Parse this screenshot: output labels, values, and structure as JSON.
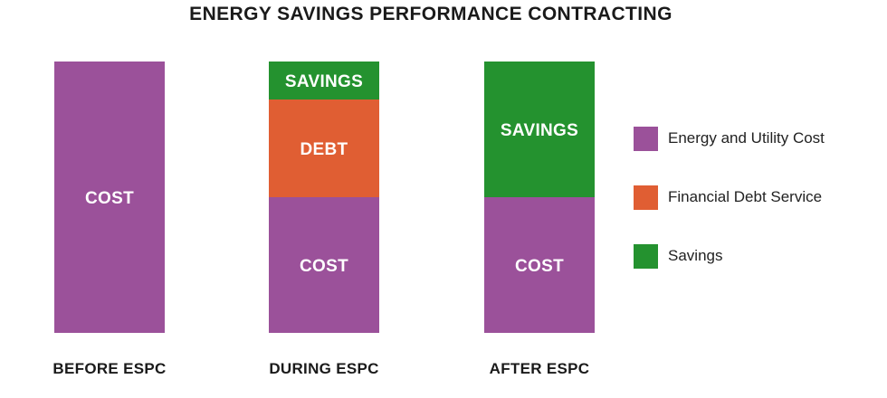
{
  "chart_data": {
    "type": "bar",
    "stacked": true,
    "title": "ENERGY SAVINGS PERFORMANCE CONTRACTING",
    "categories": [
      "BEFORE ESPC",
      "DURING ESPC",
      "AFTER ESPC"
    ],
    "series": [
      {
        "key": "cost",
        "segment_label": "COST",
        "legend": "Energy and Utility Cost",
        "color": "#9B519A",
        "values": [
          100,
          50,
          50
        ]
      },
      {
        "key": "debt",
        "segment_label": "DEBT",
        "legend": "Financial Debt Service",
        "color": "#E05E33",
        "values": [
          0,
          36,
          0
        ]
      },
      {
        "key": "savings",
        "segment_label": "SAVINGS",
        "legend": "Savings",
        "color": "#24922F",
        "values": [
          0,
          14,
          50
        ]
      }
    ],
    "ylim": [
      0,
      100
    ],
    "grid": false,
    "axes_visible": false,
    "legend_position": "right"
  }
}
